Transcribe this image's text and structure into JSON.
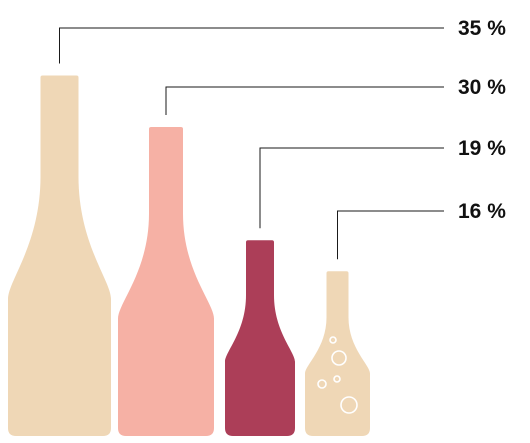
{
  "chart_data": {
    "type": "bar",
    "categories": [
      "",
      "",
      "",
      ""
    ],
    "values": [
      35,
      30,
      19,
      16
    ],
    "unit": "%",
    "labels": [
      "35 %",
      "30 %",
      "19 %",
      "16 %"
    ],
    "marks": [
      "bottle",
      "bottle",
      "bottle",
      "bottle"
    ],
    "ylim": [
      0,
      35
    ],
    "legend": "none",
    "grid": false
  },
  "colors": {
    "bottle_1": "#efd7b6",
    "bottle_2": "#f6b1a5",
    "bottle_3": "#ac3e58",
    "bottle_4": "#efd7b6",
    "bubbles": "#ffffff",
    "leader_line": "#1a1a1a",
    "label_text": "#111111"
  }
}
